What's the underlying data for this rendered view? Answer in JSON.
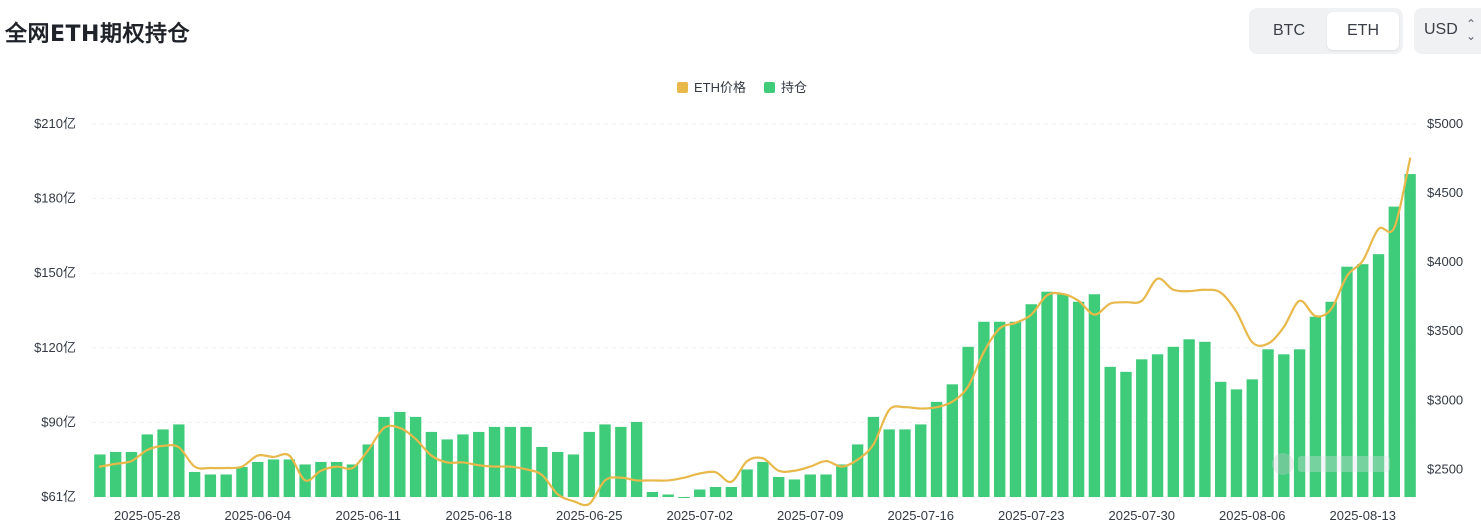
{
  "header": {
    "title": "全网ETH期权持仓",
    "assets": [
      "BTC",
      "ETH"
    ],
    "selected_asset": "ETH",
    "currency": "USD"
  },
  "chart_data": {
    "type": "bar",
    "x_ticks": [
      "2025-05-28",
      "2025-06-04",
      "2025-06-11",
      "2025-06-18",
      "2025-06-25",
      "2025-07-02",
      "2025-07-09",
      "2025-07-16",
      "2025-07-23",
      "2025-07-30",
      "2025-08-06",
      "2025-08-13"
    ],
    "y_left_ticks": [
      "$61亿",
      "$90亿",
      "$120亿",
      "$150亿",
      "$180亿",
      "$210亿"
    ],
    "y_right_ticks": [
      "$2500",
      "$3000",
      "$3500",
      "$4000",
      "$4500",
      "$5000"
    ],
    "ylim_left": [
      61,
      210
    ],
    "ylim_right": [
      2300,
      5000
    ],
    "legend": [
      {
        "name": "ETH价格",
        "color": "#e8b84a",
        "kind": "line"
      },
      {
        "name": "持仓",
        "color": "#3ecb7a",
        "kind": "bar"
      }
    ],
    "series": [
      {
        "name": "持仓",
        "axis": "left",
        "values": [
          78,
          79,
          79,
          86,
          88,
          90,
          71,
          70,
          70,
          73,
          75,
          76,
          76,
          74,
          75,
          75,
          74,
          82,
          93,
          95,
          93,
          87,
          84,
          86,
          87,
          89,
          89,
          89,
          81,
          79,
          78,
          87,
          90,
          89,
          91,
          63,
          62,
          61,
          64,
          65,
          65,
          72,
          75,
          69,
          68,
          70,
          70,
          74,
          82,
          93,
          88,
          88,
          90,
          99,
          106,
          121,
          131,
          131,
          131,
          138,
          143,
          142,
          139,
          142,
          113,
          111,
          116,
          118,
          121,
          124,
          123,
          107,
          104,
          108,
          120,
          118,
          120,
          133,
          139,
          153,
          154,
          158,
          177,
          190
        ]
      },
      {
        "name": "ETH价格",
        "axis": "right",
        "values": [
          2520,
          2540,
          2560,
          2640,
          2670,
          2660,
          2520,
          2510,
          2510,
          2520,
          2600,
          2590,
          2600,
          2420,
          2490,
          2520,
          2510,
          2640,
          2800,
          2800,
          2720,
          2600,
          2550,
          2550,
          2530,
          2520,
          2520,
          2500,
          2460,
          2320,
          2270,
          2250,
          2420,
          2440,
          2420,
          2420,
          2420,
          2440,
          2470,
          2480,
          2410,
          2560,
          2580,
          2490,
          2490,
          2520,
          2560,
          2520,
          2570,
          2680,
          2930,
          2950,
          2940,
          2950,
          2990,
          3100,
          3350,
          3520,
          3560,
          3620,
          3760,
          3770,
          3720,
          3620,
          3700,
          3710,
          3720,
          3880,
          3800,
          3790,
          3800,
          3780,
          3640,
          3420,
          3410,
          3530,
          3720,
          3610,
          3660,
          3900,
          4010,
          4240,
          4250,
          4750
        ]
      }
    ]
  }
}
